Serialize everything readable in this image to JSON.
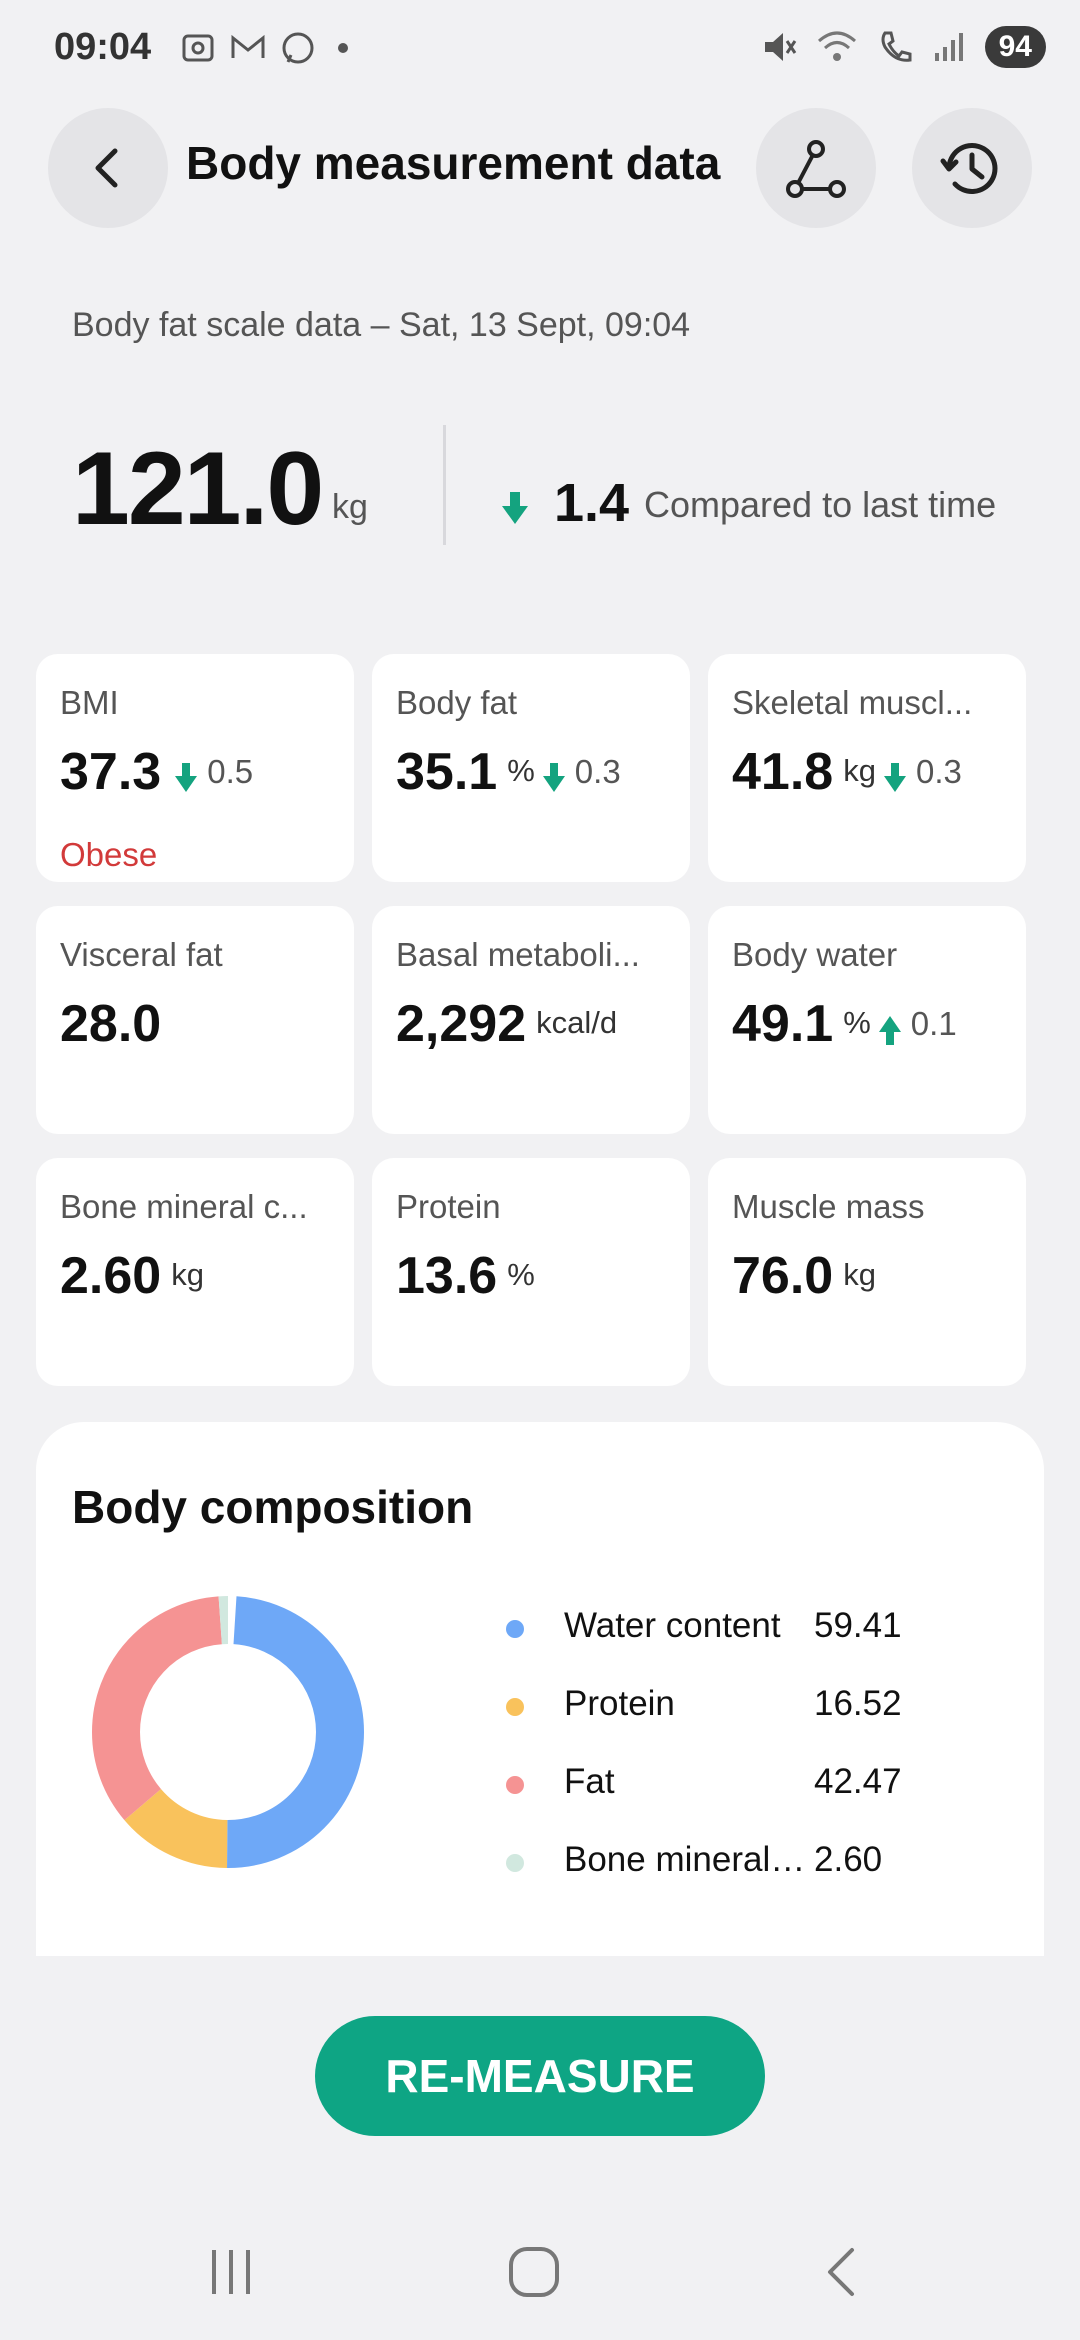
{
  "status_bar": {
    "time": "09:04",
    "battery": "94"
  },
  "header": {
    "title": "Body measurement data"
  },
  "subtitle": "Body fat scale data – Sat, 13 Sept, 09:04",
  "weight": {
    "value": "121.0",
    "unit": "kg",
    "change": "1.4",
    "change_text": "Compared to last time"
  },
  "metrics": [
    {
      "label": "BMI",
      "value": "37.3",
      "unit": "",
      "change": "0.5",
      "direction": "down",
      "status": "Obese"
    },
    {
      "label": "Body fat",
      "value": "35.1",
      "unit": "%",
      "change": "0.3",
      "direction": "down"
    },
    {
      "label": "Skeletal muscl...",
      "value": "41.8",
      "unit": "kg",
      "change": "0.3",
      "direction": "down"
    },
    {
      "label": "Visceral fat",
      "value": "28.0",
      "unit": ""
    },
    {
      "label": "Basal metaboli...",
      "value": "2,292",
      "unit": "kcal/d"
    },
    {
      "label": "Body water",
      "value": "49.1",
      "unit": "%",
      "change": "0.1",
      "direction": "up"
    },
    {
      "label": "Bone mineral c...",
      "value": "2.60",
      "unit": "kg"
    },
    {
      "label": "Protein",
      "value": "13.6",
      "unit": "%"
    },
    {
      "label": "Muscle mass",
      "value": "76.0",
      "unit": "kg"
    }
  ],
  "composition": {
    "title": "Body composition",
    "items": [
      {
        "name": "Water content",
        "value": "59.41",
        "color": "#6ea8f7"
      },
      {
        "name": "Protein",
        "value": "16.52",
        "color": "#f9c25c"
      },
      {
        "name": "Fat",
        "value": "42.47",
        "color": "#f59393"
      },
      {
        "name": "Bone mineral content",
        "value": "2.60",
        "color": "#d1e8df"
      }
    ]
  },
  "actions": {
    "remeasure": "RE-MEASURE"
  },
  "colors": {
    "accent": "#0ea584",
    "down_arrow": "#14a37f",
    "status_bad": "#d23a3a"
  }
}
